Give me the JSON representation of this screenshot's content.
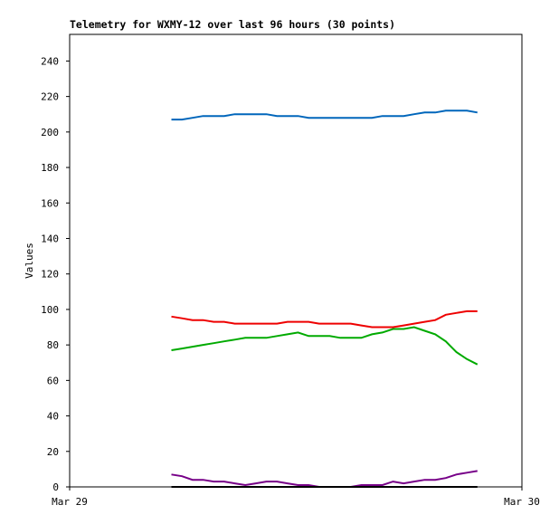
{
  "chart_data": {
    "type": "line",
    "title": "Telemetry for WXMY-12 over last 96 hours (30 points)",
    "y_label": "Values",
    "x": [
      5.4,
      5.96,
      6.52,
      7.08,
      7.64,
      8.2,
      8.76,
      9.32,
      9.88,
      10.44,
      11.0,
      11.56,
      12.12,
      12.68,
      13.24,
      13.8,
      14.36,
      14.92,
      15.48,
      16.04,
      16.6,
      17.16,
      17.72,
      18.28,
      18.84,
      19.4,
      19.96,
      20.52,
      21.08,
      21.64
    ],
    "xlim": [
      0,
      24
    ],
    "xticks": [
      {
        "value": 0,
        "label": "Mar 29"
      },
      {
        "value": 24,
        "label": "Mar 30"
      }
    ],
    "ylim": [
      0,
      255
    ],
    "yticks": [
      0,
      20,
      40,
      60,
      80,
      100,
      120,
      140,
      160,
      180,
      200,
      220,
      240
    ],
    "series": [
      {
        "color": "#0066bb",
        "values": [
          207,
          207,
          208,
          209,
          209,
          209,
          210,
          210,
          210,
          210,
          209,
          209,
          209,
          208,
          208,
          208,
          208,
          208,
          208,
          208,
          209,
          209,
          209,
          210,
          211,
          211,
          212,
          212,
          212,
          211
        ]
      },
      {
        "color": "#ee0000",
        "values": [
          96,
          95,
          94,
          94,
          93,
          93,
          92,
          92,
          92,
          92,
          92,
          93,
          93,
          93,
          92,
          92,
          92,
          92,
          91,
          90,
          90,
          90,
          91,
          92,
          93,
          94,
          97,
          98,
          99,
          99
        ]
      },
      {
        "color": "#00aa00",
        "values": [
          77,
          78,
          79,
          80,
          81,
          82,
          83,
          84,
          84,
          84,
          85,
          86,
          87,
          85,
          85,
          85,
          84,
          84,
          84,
          86,
          87,
          89,
          89,
          90,
          88,
          86,
          82,
          76,
          72,
          69
        ]
      },
      {
        "color": "#770088",
        "values": [
          7,
          6,
          4,
          4,
          3,
          3,
          2,
          1,
          2,
          3,
          3,
          2,
          1,
          1,
          0,
          0,
          0,
          0,
          1,
          1,
          1,
          3,
          2,
          3,
          4,
          4,
          5,
          7,
          8,
          9
        ]
      },
      {
        "color": "#000000",
        "values": [
          0,
          0,
          0,
          0,
          0,
          0,
          0,
          0,
          0,
          0,
          0,
          0,
          0,
          0,
          0,
          0,
          0,
          0,
          0,
          0,
          0,
          0,
          0,
          0,
          0,
          0,
          0,
          0,
          0,
          0
        ]
      }
    ]
  }
}
